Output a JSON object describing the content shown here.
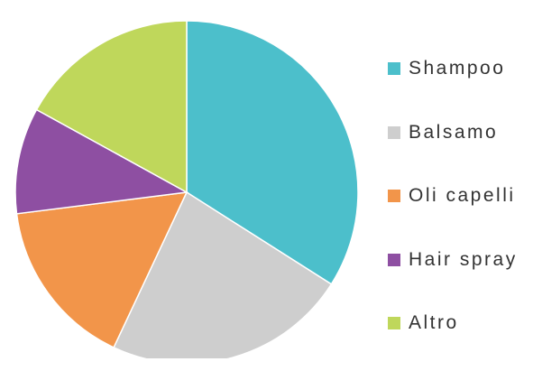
{
  "chart_data": {
    "type": "pie",
    "categories": [
      "Shampoo",
      "Balsamo",
      "Oli capelli",
      "Hair spray",
      "Altro"
    ],
    "values": [
      34,
      23,
      16,
      10,
      17
    ],
    "colors": [
      "#4CBFCB",
      "#CECECE",
      "#F2954A",
      "#8E4FA2",
      "#BFD75B"
    ],
    "start_angle_deg": 0,
    "direction": "clockwise",
    "legend_position": "right",
    "title": ""
  }
}
